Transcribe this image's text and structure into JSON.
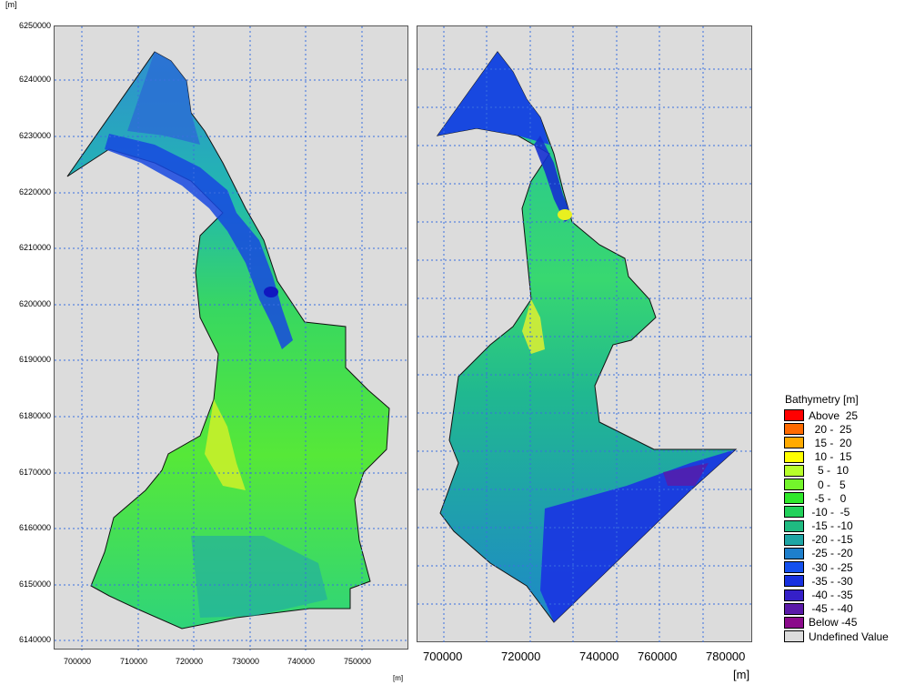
{
  "units": {
    "top_unit": "[m]",
    "left_x_unit": "[m]",
    "right_x_unit": "[m]"
  },
  "left_map": {
    "y_ticks": [
      "6250000",
      "6240000",
      "6230000",
      "6220000",
      "6210000",
      "6200000",
      "6190000",
      "6180000",
      "6170000",
      "6160000",
      "6150000",
      "6140000"
    ],
    "x_ticks": [
      "700000",
      "710000",
      "720000",
      "730000",
      "740000",
      "750000"
    ]
  },
  "right_map": {
    "x_ticks": [
      "700000",
      "720000",
      "740000",
      "760000",
      "780000"
    ]
  },
  "legend": {
    "title": "Bathymetry [m]",
    "items": [
      {
        "label": "Above  25",
        "color": "#ff0000"
      },
      {
        "label": "  20 -  25",
        "color": "#ff6a00"
      },
      {
        "label": "  15 -  20",
        "color": "#ffaa00"
      },
      {
        "label": "  10 -  15",
        "color": "#ffff00"
      },
      {
        "label": "   5 -  10",
        "color": "#b7ff2a"
      },
      {
        "label": "   0 -   5",
        "color": "#73f52b"
      },
      {
        "label": "  -5 -   0",
        "color": "#2ee82b"
      },
      {
        "label": " -10 -  -5",
        "color": "#22d15a"
      },
      {
        "label": " -15 - -10",
        "color": "#1fbb81"
      },
      {
        "label": " -20 - -15",
        "color": "#1ea5a5"
      },
      {
        "label": " -25 - -20",
        "color": "#1e7fcc"
      },
      {
        "label": " -30 - -25",
        "color": "#1450ee"
      },
      {
        "label": " -35 - -30",
        "color": "#1730e0"
      },
      {
        "label": " -40 - -35",
        "color": "#3520c8"
      },
      {
        "label": " -45 - -40",
        "color": "#5a1aa8"
      },
      {
        "label": "Below -45",
        "color": "#8b0a8b"
      },
      {
        "label": "Undefined Value",
        "color": "#dcdcdc"
      }
    ]
  }
}
